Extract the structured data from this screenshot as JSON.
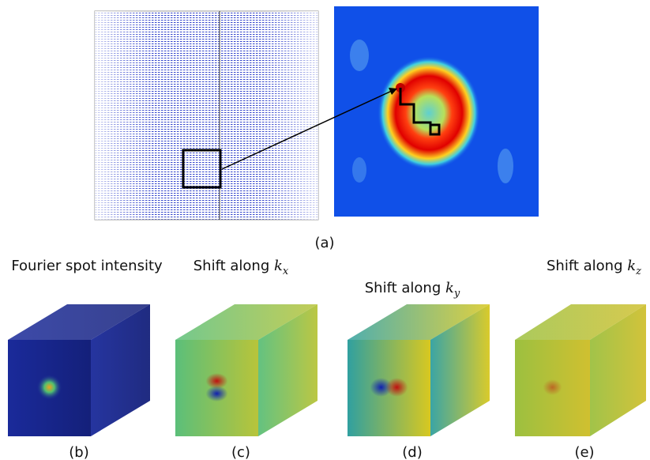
{
  "figure": {
    "panel_a": {
      "label": "(a)"
    },
    "panels": [
      {
        "title": {
          "text": "Fourier spot intensity"
        },
        "label": "(b)"
      },
      {
        "title": {
          "text": "Shift along ",
          "symbol": "k",
          "subscript": "x"
        },
        "label": "(c)"
      },
      {
        "title": {
          "text": "Shift along ",
          "symbol": "k",
          "subscript": "y"
        },
        "label": "(d)"
      },
      {
        "title": {
          "text": "Shift along ",
          "symbol": "k",
          "subscript": "z"
        },
        "label": "(e)"
      }
    ]
  }
}
